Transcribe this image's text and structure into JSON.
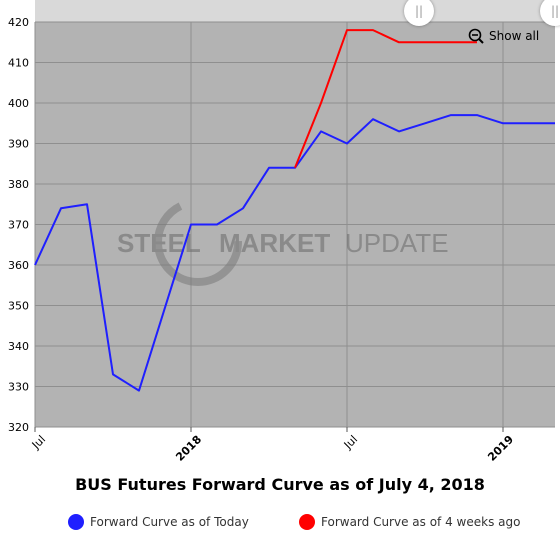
{
  "chart_data": {
    "type": "line",
    "title": "BUS Futures Forward Curve as of July 4, 2018",
    "ylim": [
      320,
      420
    ],
    "yticks": [
      320,
      330,
      340,
      350,
      360,
      370,
      380,
      390,
      400,
      410,
      420
    ],
    "xlim": [
      0,
      20
    ],
    "x_ticks": [
      {
        "x": 0,
        "label": "Jul",
        "major": false
      },
      {
        "x": 6,
        "label": "2018",
        "major": true
      },
      {
        "x": 12,
        "label": "Jul",
        "major": false
      },
      {
        "x": 18,
        "label": "2019",
        "major": true
      }
    ],
    "series": [
      {
        "name": "Forward Curve as of Today",
        "color": "#1f1fff",
        "points": [
          [
            0,
            360
          ],
          [
            1,
            374
          ],
          [
            2,
            375
          ],
          [
            3,
            333
          ],
          [
            4,
            329
          ],
          [
            6,
            370
          ],
          [
            7,
            370
          ],
          [
            8,
            374
          ],
          [
            9,
            384
          ],
          [
            10,
            384
          ],
          [
            11,
            393
          ],
          [
            12,
            390
          ],
          [
            13,
            396
          ],
          [
            14,
            393
          ],
          [
            15,
            395
          ],
          [
            16,
            397
          ],
          [
            17,
            397
          ],
          [
            18,
            395
          ],
          [
            19,
            395
          ],
          [
            20,
            395
          ]
        ]
      },
      {
        "name": "Forward Curve as of 4 weeks ago",
        "color": "#ff0000",
        "points": [
          [
            10,
            384
          ],
          [
            11,
            400
          ],
          [
            12,
            418
          ],
          [
            13,
            418
          ],
          [
            14,
            415
          ],
          [
            15,
            415
          ],
          [
            16,
            415
          ],
          [
            17,
            415
          ]
        ]
      }
    ],
    "grid": true,
    "legend": "bottom"
  },
  "watermark": {
    "steel": "STEEL",
    "market": "MARKET",
    "update": "UPDATE"
  },
  "controls": {
    "show_all": "Show all",
    "zoom_icon": "zoom-out-icon",
    "handle_glyph": "||"
  },
  "colors": {
    "plot_bg": "#b3b3b3",
    "grid": "#8f8f8f",
    "navigator": "#d9d9d9"
  }
}
